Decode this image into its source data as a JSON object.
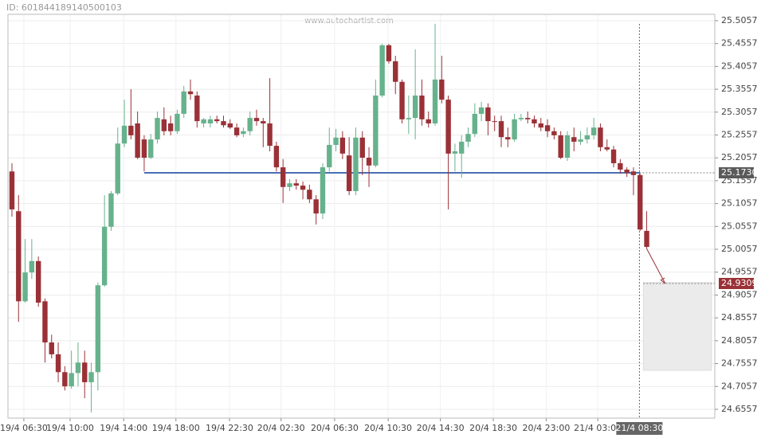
{
  "chart_data": {
    "type": "candlestick",
    "id_label": "ID: 601844189140500103",
    "watermark": "www.autochartist.com",
    "up_color": "#66b28c",
    "down_color": "#9a3137",
    "grid": true,
    "open": [
      25.176,
      25.089,
      24.892,
      24.955,
      24.98,
      24.892,
      24.802,
      24.776,
      24.737,
      24.706,
      24.735,
      24.758,
      24.715,
      24.737,
      24.927,
      25.055,
      25.128,
      25.237,
      25.276,
      25.281,
      25.246,
      25.206,
      25.246,
      25.29,
      25.281,
      25.264,
      25.302,
      25.351,
      25.342,
      25.281,
      25.281,
      25.29,
      25.286,
      25.281,
      25.272,
      25.258,
      25.264,
      25.293,
      25.286,
      25.281,
      25.232,
      25.185,
      25.142,
      25.15,
      25.145,
      25.136,
      25.115,
      25.084,
      25.185,
      25.234,
      25.25,
      25.211,
      25.133,
      25.25,
      25.206,
      25.189,
      25.342,
      25.452,
      25.417,
      25.372,
      25.29,
      25.293,
      25.342,
      25.29,
      25.281,
      25.377,
      25.333,
      25.215,
      25.215,
      25.241,
      25.258,
      25.302,
      25.316,
      25.286,
      25.286,
      25.251,
      25.246,
      25.29,
      25.293,
      25.29,
      25.281,
      25.277,
      25.264,
      25.255,
      25.206,
      25.251,
      25.241,
      25.246,
      25.255,
      25.272,
      25.229,
      25.224,
      25.194,
      25.18,
      25.176,
      25.168,
      25.046
    ],
    "high": [
      25.194,
      25.124,
      25.028,
      25.028,
      24.99,
      24.898,
      24.819,
      24.802,
      24.75,
      24.784,
      24.802,
      24.784,
      24.758,
      24.933,
      25.124,
      25.133,
      25.272,
      25.333,
      25.356,
      25.307,
      25.255,
      25.258,
      25.307,
      25.316,
      25.298,
      25.311,
      25.363,
      25.377,
      25.351,
      25.293,
      25.298,
      25.298,
      25.298,
      25.29,
      25.281,
      25.272,
      25.307,
      25.311,
      25.293,
      25.38,
      25.241,
      25.203,
      25.159,
      25.159,
      25.154,
      25.147,
      25.124,
      25.194,
      25.272,
      25.269,
      25.264,
      25.251,
      25.272,
      25.264,
      25.229,
      25.377,
      25.455,
      25.455,
      25.429,
      25.377,
      25.342,
      25.443,
      25.377,
      25.307,
      25.499,
      25.429,
      25.342,
      25.237,
      25.255,
      25.272,
      25.325,
      25.328,
      25.325,
      25.298,
      25.298,
      25.272,
      25.302,
      25.302,
      25.307,
      25.298,
      25.293,
      25.29,
      25.272,
      25.264,
      25.264,
      25.272,
      25.264,
      25.272,
      25.293,
      25.281,
      25.246,
      25.232,
      25.203,
      25.185,
      25.185,
      25.171,
      25.089
    ],
    "low": [
      25.077,
      24.847,
      24.889,
      24.941,
      24.88,
      24.758,
      24.767,
      24.715,
      24.697,
      24.701,
      24.706,
      24.68,
      24.649,
      24.697,
      24.924,
      25.046,
      25.124,
      25.229,
      25.246,
      25.203,
      25.176,
      25.203,
      25.237,
      25.255,
      25.255,
      25.258,
      25.293,
      25.333,
      25.272,
      25.272,
      25.272,
      25.281,
      25.272,
      25.269,
      25.251,
      25.251,
      25.255,
      25.276,
      25.229,
      25.22,
      25.176,
      25.107,
      25.133,
      25.136,
      25.115,
      25.107,
      25.06,
      25.072,
      25.176,
      25.22,
      25.203,
      25.124,
      25.124,
      25.168,
      25.142,
      25.185,
      25.338,
      25.412,
      25.345,
      25.281,
      25.258,
      25.246,
      25.276,
      25.272,
      25.276,
      25.325,
      25.093,
      25.176,
      25.162,
      25.229,
      25.251,
      25.286,
      25.255,
      25.264,
      25.229,
      25.229,
      25.241,
      25.286,
      25.281,
      25.272,
      25.264,
      25.251,
      25.246,
      25.203,
      25.199,
      25.22,
      25.234,
      25.237,
      25.246,
      25.22,
      25.22,
      25.185,
      25.171,
      25.164,
      25.124,
      25.046,
      25.007
    ],
    "close": [
      25.093,
      24.892,
      24.955,
      24.98,
      24.889,
      24.802,
      24.776,
      24.737,
      24.706,
      24.735,
      24.758,
      24.715,
      24.737,
      24.927,
      25.055,
      25.128,
      25.237,
      25.276,
      25.255,
      25.206,
      25.206,
      25.246,
      25.293,
      25.264,
      25.264,
      25.302,
      25.351,
      25.345,
      25.286,
      25.29,
      25.29,
      25.286,
      25.277,
      25.272,
      25.255,
      25.264,
      25.293,
      25.286,
      25.281,
      25.232,
      25.185,
      25.142,
      25.15,
      25.145,
      25.136,
      25.115,
      25.084,
      25.185,
      25.234,
      25.25,
      25.215,
      25.133,
      25.25,
      25.206,
      25.189,
      25.342,
      25.452,
      25.417,
      25.372,
      25.29,
      25.293,
      25.342,
      25.29,
      25.281,
      25.377,
      25.333,
      25.215,
      25.22,
      25.241,
      25.258,
      25.302,
      25.316,
      25.286,
      25.285,
      25.251,
      25.246,
      25.29,
      25.293,
      25.29,
      25.281,
      25.272,
      25.264,
      25.255,
      25.206,
      25.255,
      25.241,
      25.246,
      25.255,
      25.272,
      25.229,
      25.224,
      25.194,
      25.18,
      25.173,
      25.168,
      25.049,
      25.011
    ],
    "xlim": [
      -0.6,
      106.3
    ],
    "ylim": [
      24.6365,
      25.5196
    ],
    "xticks": [
      {
        "value": 1.8,
        "label": "19/4 06:30"
      },
      {
        "value": 8.8,
        "label": "19/4 10:00"
      },
      {
        "value": 16.9,
        "label": "19/4 14:00"
      },
      {
        "value": 24.8,
        "label": "19/4 18:00"
      },
      {
        "value": 32.9,
        "label": "19/4 22:30"
      },
      {
        "value": 40.7,
        "label": "20/4 02:30"
      },
      {
        "value": 48.8,
        "label": "20/4 06:30"
      },
      {
        "value": 56.9,
        "label": "20/4 10:30"
      },
      {
        "value": 64.8,
        "label": "20/4 14:30"
      },
      {
        "value": 72.8,
        "label": "20/4 18:30"
      },
      {
        "value": 80.8,
        "label": "20/4 23:00"
      },
      {
        "value": 88.6,
        "label": "21/4 03:00"
      }
    ],
    "yticks": [
      25.5057,
      25.4557,
      25.4057,
      25.3557,
      25.3057,
      25.2557,
      25.2057,
      25.1557,
      25.1057,
      25.0557,
      25.0057,
      24.9557,
      24.9057,
      24.8557,
      24.8057,
      24.7557,
      24.7057,
      24.6557
    ],
    "current_time": {
      "value": 94.9,
      "label": "21/4 08:30"
    },
    "level_line": {
      "x": [
        20,
        95
      ],
      "value": {
        "value": 25.173,
        "label": "25.1730"
      },
      "color": "#4a6fb5"
    },
    "target": {
      "value": 24.9309
    },
    "projection": {
      "x": [
        96,
        98.8
      ],
      "y": [
        25.007,
        24.9309
      ]
    },
    "forecast_zone": {
      "x": [
        95.5,
        105.8
      ],
      "y": [
        24.741,
        24.933
      ],
      "color": "#ebebeb"
    }
  }
}
